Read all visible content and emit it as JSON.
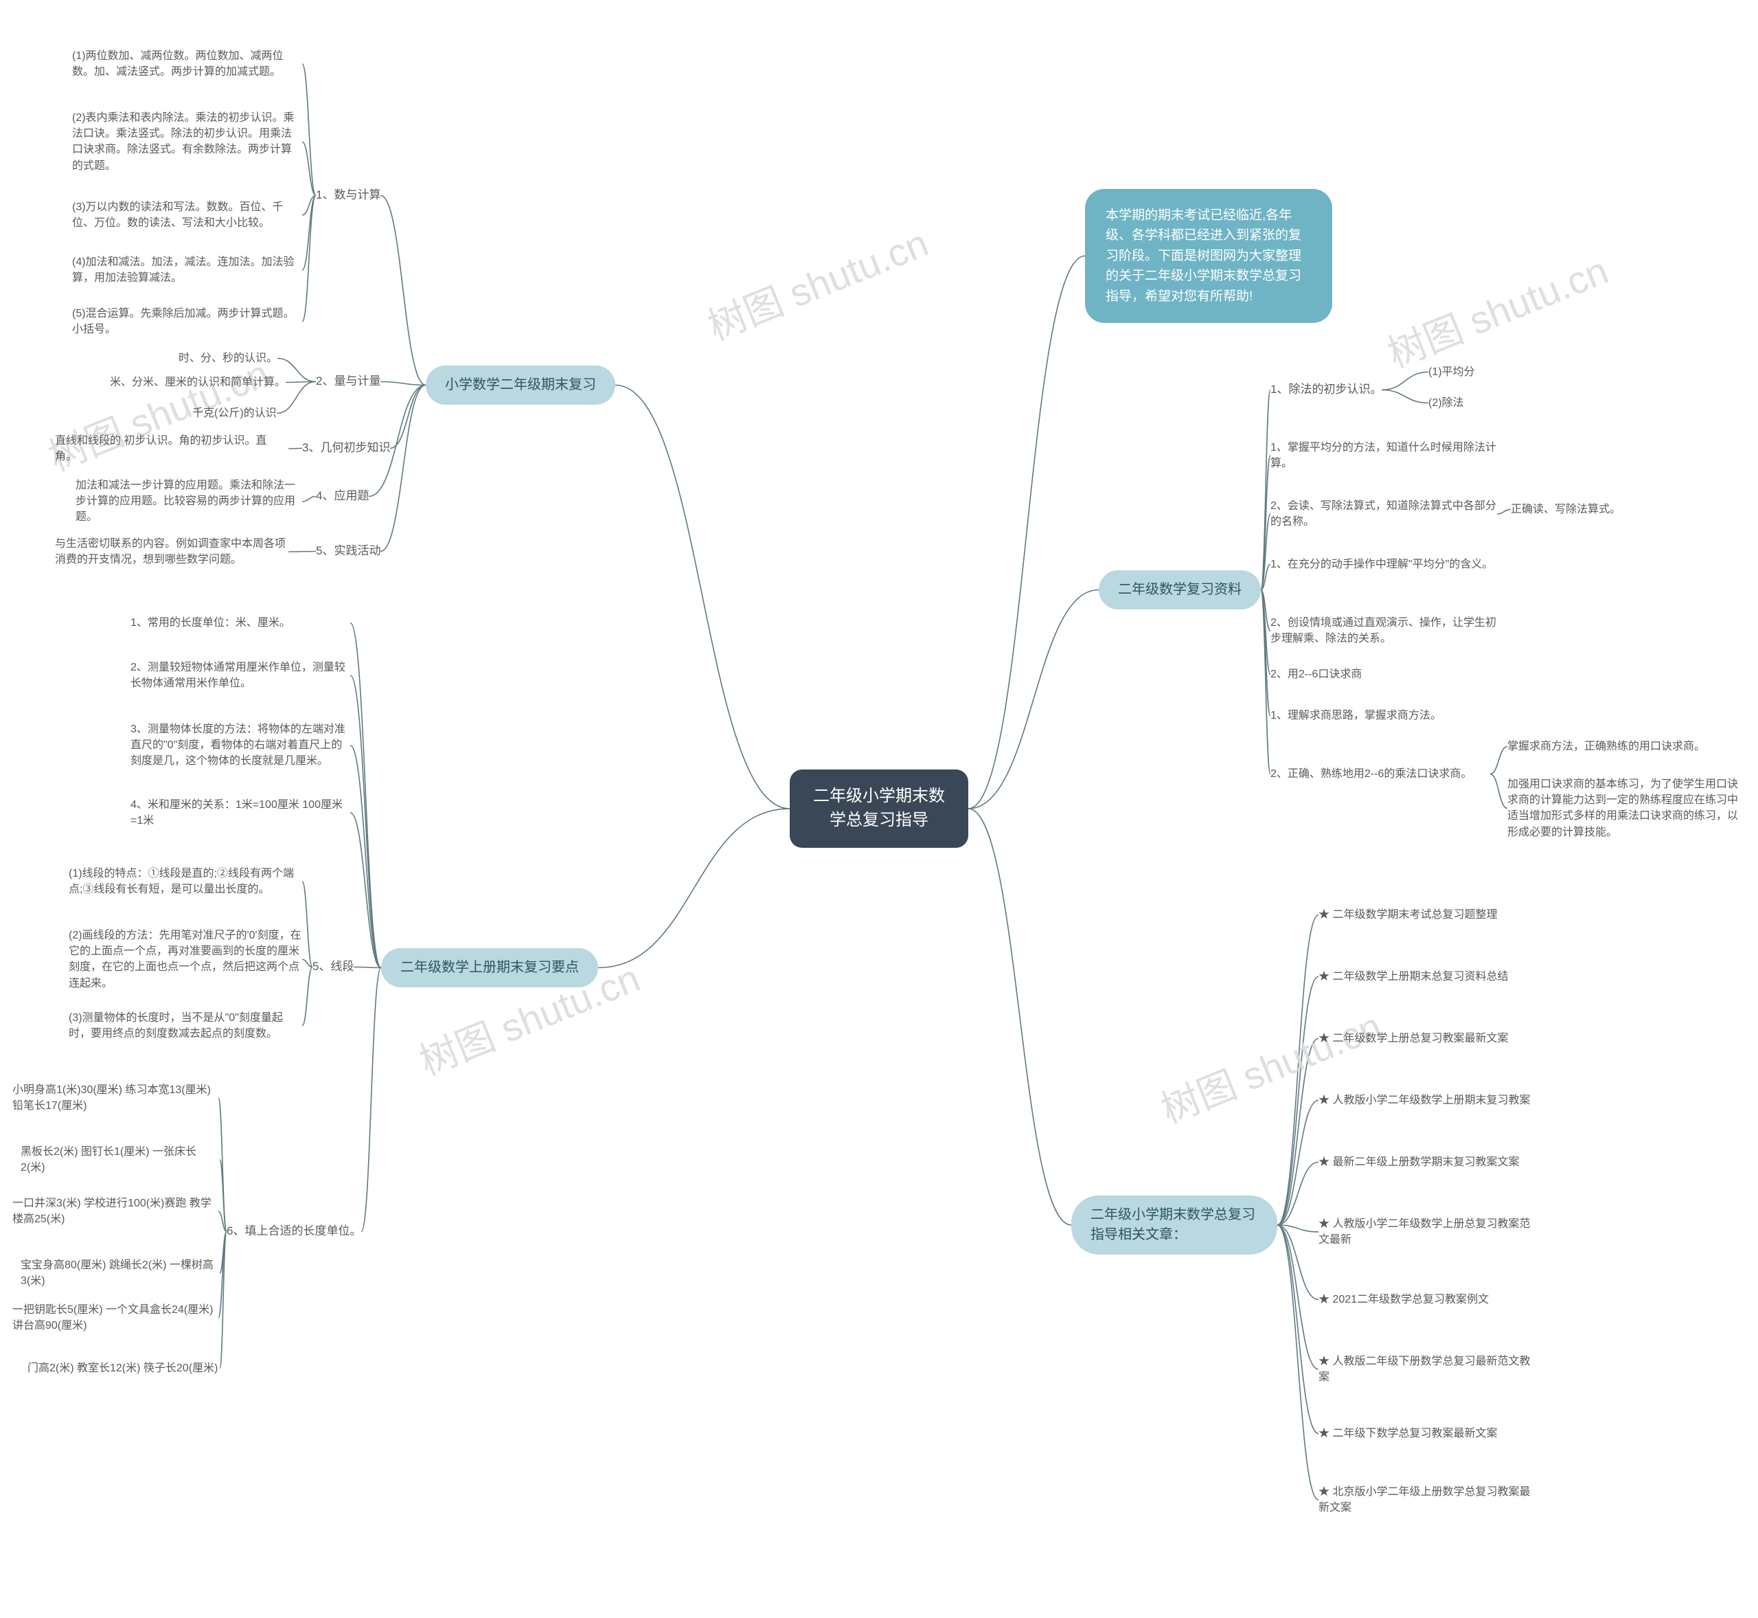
{
  "colors": {
    "center_bg": "#3a4757",
    "center_text": "#ffffff",
    "pill_bg": "#b9d8e0",
    "pill_text": "#2b5560",
    "intro_bg": "#6fb4c4",
    "intro_text": "#ffffff",
    "leaf_text": "#5a5a5a",
    "edge": "#5f7a80",
    "watermark": "#dcdcdc",
    "background": "#ffffff"
  },
  "typography": {
    "center_fontsize": 24,
    "pill_fontsize": 20,
    "leaf_fontsize": 17,
    "font_family": "Microsoft YaHei"
  },
  "watermark_text": "树图 shutu.cn",
  "center": {
    "text": "二年级小学期末数学总复习指导"
  },
  "branches": {
    "intro": {
      "text": "本学期的期末考试已经临近,各年级、各学科都已经进入到紧张的复习阶段。下面是树图网为大家整理的关于二年级小学期末数学总复习指导，希望对您有所帮助!"
    },
    "left1": {
      "label": "小学数学二年级期末复习",
      "items": {
        "n1": {
          "label": "1、数与计算",
          "children": {
            "c1": "(1)两位数加、减两位数。两位数加、减两位数。加、减法竖式。两步计算的加减式题。",
            "c2": "(2)表内乘法和表内除法。乘法的初步认识。乘法口诀。乘法竖式。除法的初步认识。用乘法口诀求商。除法竖式。有余数除法。两步计算的式题。",
            "c3": "(3)万以内数的读法和写法。数数。百位、千位、万位。数的读法、写法和大小比较。",
            "c4": "(4)加法和减法。加法，减法。连加法。加法验算，用加法验算减法。",
            "c5": "(5)混合运算。先乘除后加减。两步计算式题。小括号。"
          }
        },
        "n2": {
          "label": "2、量与计量",
          "children": {
            "c1": "时、分、秒的认识。",
            "c2": "米、分米、厘米的认识和简单计算。",
            "c3": "千克(公斤)的认识"
          }
        },
        "n3": {
          "label": "3、几何初步知识",
          "child": "直线和线段的 初步认识。角的初步认识。直角。"
        },
        "n4": {
          "label": "4、应用题",
          "child": "加法和减法一步计算的应用题。乘法和除法一步计算的应用题。比较容易的两步计算的应用题。"
        },
        "n5": {
          "label": "5、实践活动",
          "child": "与生活密切联系的内容。例如调查家中本周各项消费的开支情况，想到哪些数学问题。"
        }
      }
    },
    "left2": {
      "label": "二年级数学上册期末复习要点",
      "items": {
        "n1": "1、常用的长度单位：米、厘米。",
        "n2": "2、测量较短物体通常用厘米作单位，测量较长物体通常用米作单位。",
        "n3": "3、测量物体长度的方法：将物体的左端对准直尺的\"0\"刻度，看物体的右端对着直尺上的刻度是几，这个物体的长度就是几厘米。",
        "n4": "4、米和厘米的关系：1米=100厘米 100厘米=1米",
        "n5": {
          "label": "5、线段",
          "children": {
            "c1": "(1)线段的特点：①线段是直的;②线段有两个端点;③线段有长有短，是可以量出长度的。",
            "c2": "(2)画线段的方法：先用笔对准尺子的'0'刻度，在它的上面点一个点，再对准要画到的长度的厘米刻度，在它的上面也点一个点，然后把这两个点连起来。",
            "c3": "(3)测量物体的长度时，当不是从\"0\"刻度量起时，要用终点的刻度数减去起点的刻度数。"
          }
        },
        "n6": {
          "label": "6、填上合适的长度单位。",
          "children": {
            "c1": "小明身高1(米)30(厘米) 练习本宽13(厘米) 铅笔长17(厘米)",
            "c2": "黑板长2(米) 图钉长1(厘米) 一张床长2(米)",
            "c3": "一口井深3(米) 学校进行100(米)赛跑 教学楼高25(米)",
            "c4": "宝宝身高80(厘米) 跳绳长2(米) 一棵树高3(米)",
            "c5": "一把钥匙长5(厘米) 一个文具盒长24(厘米) 讲台高90(厘米)",
            "c6": "门高2(米) 教室长12(米) 筷子长20(厘米)"
          }
        }
      }
    },
    "right1": {
      "label": "二年级数学复习资料",
      "items": {
        "n1": {
          "label": "1、除法的初步认识。",
          "children": {
            "c1": "(1)平均分",
            "c2": "(2)除法"
          }
        },
        "n2": "1、掌握平均分的方法，知道什么时候用除法计算。",
        "n3": {
          "label": "2、会读、写除法算式，知道除法算式中各部分的名称。",
          "child": "正确读、写除法算式。"
        },
        "n4": "1、在充分的动手操作中理解\"平均分\"的含义。",
        "n5": "2、创设情境或通过直观演示、操作，让学生初步理解乘、除法的关系。",
        "n6": "2、用2--6口诀求商",
        "n7": "1、理解求商思路，掌握求商方法。",
        "n8": {
          "label": "2、正确、熟练地用2--6的乘法口诀求商。",
          "children": {
            "c1": "掌握求商方法，正确熟练的用口诀求商。",
            "c2": "加强用口诀求商的基本练习，为了使学生用口诀求商的计算能力达到一定的熟练程度应在练习中适当增加形式多样的用乘法口诀求商的练习，以形成必要的计算技能。"
          }
        }
      }
    },
    "right2": {
      "label": "二年级小学期末数学总复习指导相关文章：",
      "items": {
        "a1": "★ 二年级数学期末考试总复习题整理",
        "a2": "★ 二年级数学上册期末总复习资料总结",
        "a3": "★ 二年级数学上册总复习教案最新文案",
        "a4": "★ 人教版小学二年级数学上册期末复习教案",
        "a5": "★ 最新二年级上册数学期末复习教案文案",
        "a6": "★ 人教版小学二年级数学上册总复习教案范文最新",
        "a7": "★ 2021二年级数学总复习教案例文",
        "a8": "★ 人教版二年级下册数学总复习最新范文教案",
        "a9": "★ 二年级下数学总复习教案最新文案",
        "a10": "★ 北京版小学二年级上册数学总复习教案最新文案"
      }
    }
  }
}
